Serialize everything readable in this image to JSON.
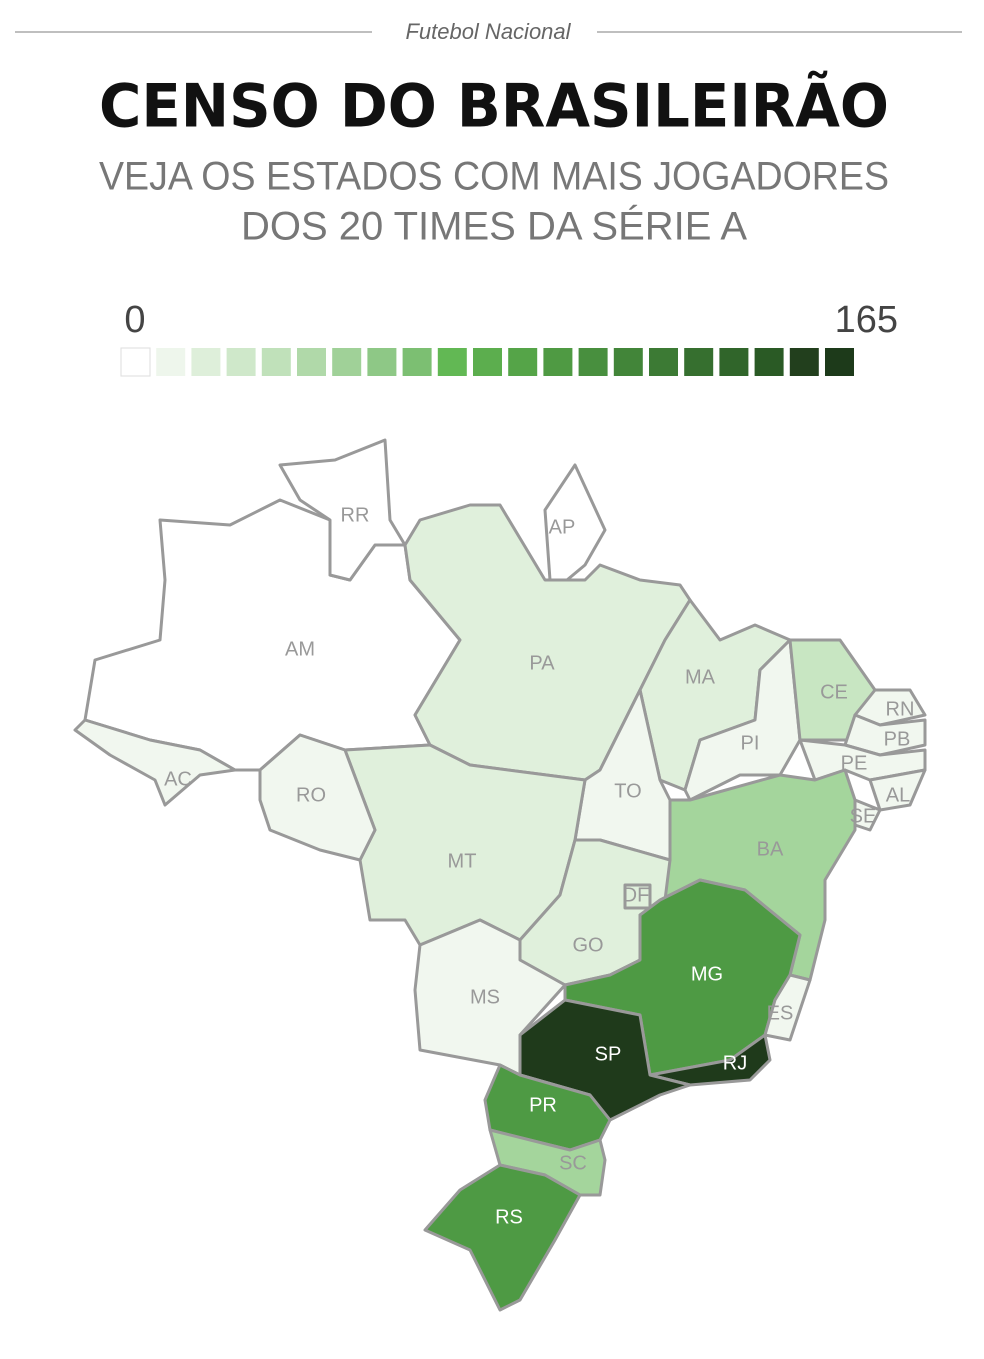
{
  "header": {
    "kicker": "Futebol Nacional",
    "title": "CENSO DO BRASILEIRÃO",
    "subtitle": [
      "VEJA OS ESTADOS COM MAIS JOGADORES",
      "DOS 20 TIMES DA SÉRIE A"
    ]
  },
  "legend": {
    "min": 0,
    "max": 165,
    "colors": [
      "#ffffff",
      "#eef6ec",
      "#deefda",
      "#cfe8ca",
      "#c0e1ba",
      "#b0d9a9",
      "#a0d198",
      "#8ec886",
      "#7cbf72",
      "#62b854",
      "#5cae4e",
      "#55a448",
      "#4f9a43",
      "#488f3e",
      "#428539",
      "#3c7a34",
      "#366f2f",
      "#30652a",
      "#2a5a25",
      "#223f1d",
      "#1d3a1a"
    ]
  },
  "states": [
    {
      "label": "AM",
      "color": "#ffffff"
    },
    {
      "label": "RR",
      "color": "#ffffff"
    },
    {
      "label": "AP",
      "color": "#ffffff"
    },
    {
      "label": "PA",
      "color": "#e0f0dc"
    },
    {
      "label": "MA",
      "color": "#e0f0dc"
    },
    {
      "label": "PI",
      "color": "#f1f7ef"
    },
    {
      "label": "CE",
      "color": "#c8e6c2"
    },
    {
      "label": "RN",
      "color": "#f1f7ef"
    },
    {
      "label": "PB",
      "color": "#f1f7ef"
    },
    {
      "label": "PE",
      "color": "#f1f7ef"
    },
    {
      "label": "AL",
      "color": "#f1f7ef"
    },
    {
      "label": "SE",
      "color": "#f1f7ef"
    },
    {
      "label": "BA",
      "color": "#a4d59c"
    },
    {
      "label": "TO",
      "color": "#f1f7ef"
    },
    {
      "label": "MT",
      "color": "#e0f0dc"
    },
    {
      "label": "RO",
      "color": "#f1f7ef"
    },
    {
      "label": "AC",
      "color": "#f1f7ef"
    },
    {
      "label": "GO",
      "color": "#e0f0dc"
    },
    {
      "label": "DF",
      "color": "#e0f0dc"
    },
    {
      "label": "MS",
      "color": "#f1f7ef"
    },
    {
      "label": "MG",
      "color": "#4e9a44"
    },
    {
      "label": "ES",
      "color": "#f1f7ef"
    },
    {
      "label": "RJ",
      "color": "#1f3a1b"
    },
    {
      "label": "SP",
      "color": "#1f3a1b"
    },
    {
      "label": "PR",
      "color": "#4e9a44"
    },
    {
      "label": "SC",
      "color": "#a4d59c"
    },
    {
      "label": "RS",
      "color": "#4e9a44"
    }
  ]
}
